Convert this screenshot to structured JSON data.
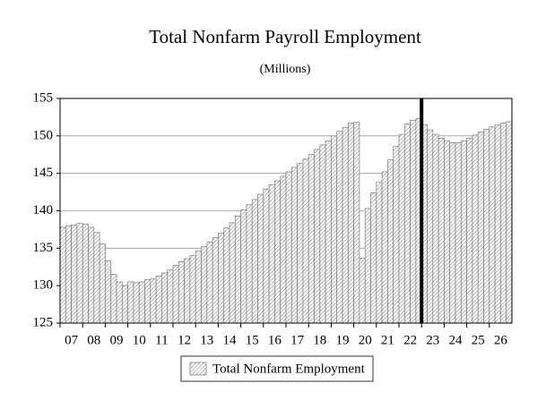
{
  "chart_data": {
    "type": "bar",
    "title": "Total Nonfarm Payroll Employment",
    "subtitle": "(Millions)",
    "categories": [
      "07",
      "08",
      "09",
      "10",
      "11",
      "12",
      "13",
      "14",
      "15",
      "16",
      "17",
      "18",
      "19",
      "20",
      "21",
      "22",
      "23",
      "24",
      "25",
      "26"
    ],
    "series": [
      {
        "name": "Total Nonfarm Employment",
        "color": "#7a7a7a",
        "values": [
          [
            137.8,
            138.0,
            138.1,
            138.3
          ],
          [
            138.2,
            137.8,
            137.1,
            135.6
          ],
          [
            133.3,
            131.5,
            130.5,
            130.0
          ],
          [
            130.5,
            130.4,
            130.5,
            130.8
          ],
          [
            130.9,
            131.3,
            131.7,
            132.1
          ],
          [
            132.7,
            133.2,
            133.6,
            134.0
          ],
          [
            134.6,
            135.2,
            135.8,
            136.4
          ],
          [
            137.0,
            137.7,
            138.4,
            139.3
          ],
          [
            140.1,
            140.8,
            141.5,
            142.2
          ],
          [
            142.9,
            143.5,
            144.0,
            144.6
          ],
          [
            145.2,
            145.8,
            146.3,
            146.9
          ],
          [
            147.5,
            148.2,
            148.8,
            149.3
          ],
          [
            150.0,
            150.6,
            151.1,
            151.7
          ],
          [
            151.8,
            133.7,
            140.3,
            142.4
          ],
          [
            143.8,
            145.2,
            146.8,
            148.6
          ],
          [
            150.2,
            151.6,
            152.1,
            152.3
          ],
          [
            151.5,
            150.8,
            150.2,
            149.7
          ],
          [
            149.3,
            149.1,
            149.1,
            149.3
          ],
          [
            149.7,
            150.1,
            150.5,
            150.9
          ],
          [
            151.2,
            151.5,
            151.7,
            151.9
          ]
        ]
      }
    ],
    "vline_after": "22",
    "ylim": [
      125,
      155
    ],
    "yticks": [
      125,
      130,
      135,
      140,
      145,
      150,
      155
    ],
    "grid": true,
    "legend": "bottom"
  }
}
